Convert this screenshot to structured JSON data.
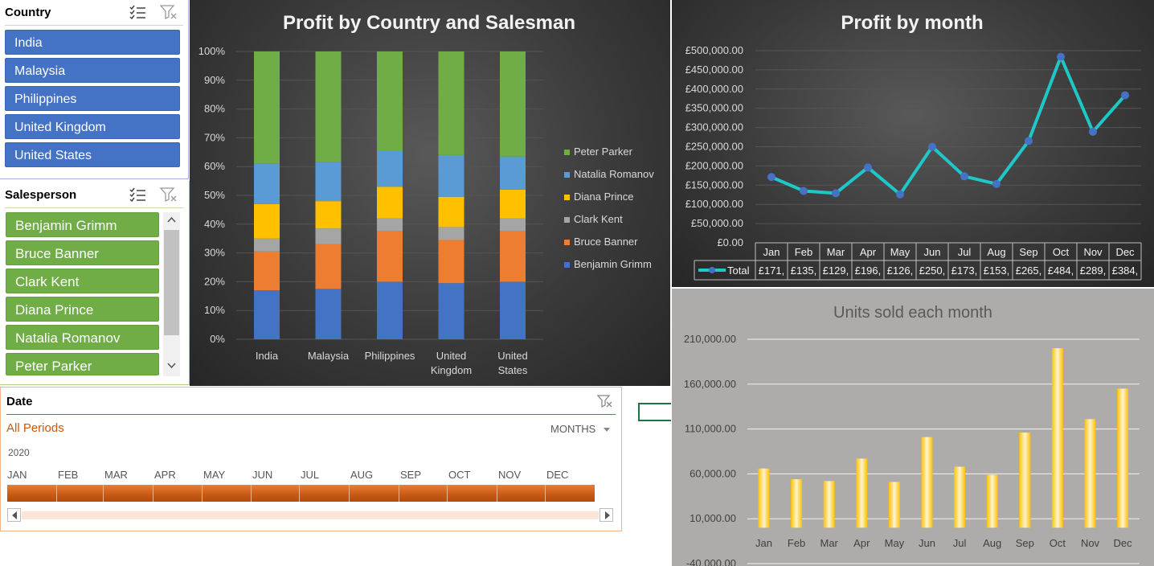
{
  "country_slicer": {
    "title": "Country",
    "items": [
      "India",
      "Malaysia",
      "Philippines",
      "United Kingdom",
      "United States"
    ]
  },
  "salesperson_slicer": {
    "title": "Salesperson",
    "items": [
      "Benjamin Grimm",
      "Bruce Banner",
      "Clark Kent",
      "Diana Prince",
      "Natalia Romanov",
      "Peter Parker"
    ]
  },
  "date_slicer": {
    "title": "Date",
    "period_label": "All Periods",
    "level_label": "MONTHS",
    "year": "2020",
    "months": [
      "JAN",
      "FEB",
      "MAR",
      "APR",
      "MAY",
      "JUN",
      "JUL",
      "AUG",
      "SEP",
      "OCT",
      "NOV",
      "DEC"
    ]
  },
  "colors": {
    "accent_blue": "#4472c4",
    "accent_green": "#70ad47",
    "timeline_orange": "#d2691e",
    "line_teal": "#1ec8c8"
  },
  "chart_data": [
    {
      "type": "bar",
      "stacked": "percent",
      "title": "Profit by Country and Salesman",
      "categories": [
        "India",
        "Malaysia",
        "Philippines",
        "United Kingdom",
        "United States"
      ],
      "category_lines": [
        [
          "India"
        ],
        [
          "Malaysia"
        ],
        [
          "Philippines"
        ],
        [
          "United",
          "Kingdom"
        ],
        [
          "United",
          "States"
        ]
      ],
      "yticks": [
        "0%",
        "10%",
        "20%",
        "30%",
        "40%",
        "50%",
        "60%",
        "70%",
        "80%",
        "90%",
        "100%"
      ],
      "ylim": [
        0,
        100
      ],
      "legend_position": "right",
      "series": [
        {
          "name": "Benjamin Grimm",
          "color": "#4472c4",
          "values": [
            17,
            17.5,
            20,
            19.5,
            20
          ]
        },
        {
          "name": "Bruce Banner",
          "color": "#ed7d31",
          "values": [
            13.5,
            15.5,
            17.5,
            15,
            17.5
          ]
        },
        {
          "name": "Clark Kent",
          "color": "#a5a5a5",
          "values": [
            4.5,
            5.5,
            4.5,
            4.5,
            4.5
          ]
        },
        {
          "name": "Diana Prince",
          "color": "#ffc000",
          "values": [
            12,
            9.5,
            11,
            10.5,
            10
          ]
        },
        {
          "name": "Natalia Romanov",
          "color": "#5b9bd5",
          "values": [
            14,
            13.5,
            12.5,
            14.5,
            11.5
          ]
        },
        {
          "name": "Peter Parker",
          "color": "#70ad47",
          "values": [
            39,
            38.5,
            34.5,
            36,
            36.5
          ]
        }
      ]
    },
    {
      "type": "line",
      "title": "Profit by month",
      "categories": [
        "Jan",
        "Feb",
        "Mar",
        "Apr",
        "May",
        "Jun",
        "Jul",
        "Aug",
        "Sep",
        "Oct",
        "Nov",
        "Dec"
      ],
      "series": [
        {
          "name": "Total",
          "values": [
            171000,
            135000,
            129000,
            196000,
            126000,
            250000,
            173000,
            153000,
            265000,
            484000,
            289000,
            384000
          ]
        }
      ],
      "table_values": [
        "£171,",
        "£135,",
        "£129,",
        "£196,",
        "£126,",
        "£250,",
        "£173,",
        "£153,",
        "£265,",
        "£484,",
        "£289,",
        "£384,"
      ],
      "yticks": [
        "£0.00",
        "£50,000.00",
        "£100,000.00",
        "£150,000.00",
        "£200,000.00",
        "£250,000.00",
        "£300,000.00",
        "£350,000.00",
        "£400,000.00",
        "£450,000.00",
        "£500,000.00"
      ],
      "ylim": [
        0,
        500000
      ],
      "grid": true
    },
    {
      "type": "bar",
      "title": "Units sold each month",
      "categories": [
        "Jan",
        "Feb",
        "Mar",
        "Apr",
        "May",
        "Jun",
        "Jul",
        "Aug",
        "Sep",
        "Oct",
        "Nov",
        "Dec"
      ],
      "values": [
        66000,
        54000,
        52000,
        77000,
        51000,
        101000,
        68000,
        59000,
        106000,
        200000,
        121000,
        155000
      ],
      "yticks": [
        "-40,000.00",
        "10,000.00",
        "60,000.00",
        "110,000.00",
        "160,000.00",
        "210,000.00"
      ],
      "ylim": [
        -40000,
        210000
      ],
      "grid": true
    }
  ]
}
